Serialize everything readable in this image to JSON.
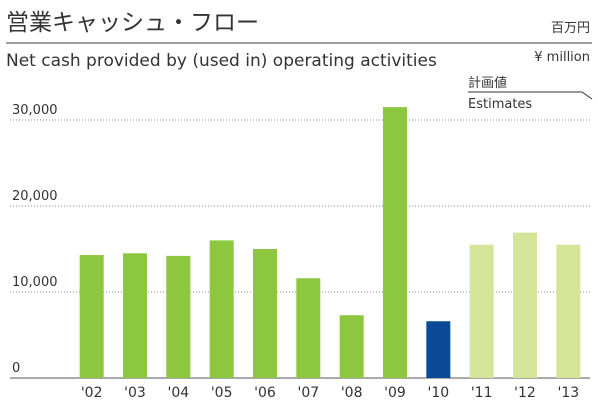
{
  "chart_data": {
    "type": "bar",
    "title": "営業キャッシュ・フロー",
    "subtitle": "Net cash provided by (used in) operating activities",
    "unit_ja": "百万円",
    "unit_en": "¥ million",
    "annotations": [
      "計画値",
      "Estimates"
    ],
    "categories": [
      "'02",
      "'03",
      "'04",
      "'05",
      "'06",
      "'07",
      "'08",
      "'09",
      "'10",
      "'11",
      "'12",
      "'13"
    ],
    "values": [
      14300,
      14500,
      14200,
      16000,
      15000,
      11600,
      7300,
      31500,
      6600,
      15500,
      16900,
      15500
    ],
    "colors": [
      "#8dc63f",
      "#8dc63f",
      "#8dc63f",
      "#8dc63f",
      "#8dc63f",
      "#8dc63f",
      "#8dc63f",
      "#8dc63f",
      "#0a4a97",
      "#d4e59a",
      "#d4e59a",
      "#d4e59a"
    ],
    "ylim": [
      0,
      32000
    ],
    "yticks": [
      0,
      {
        "value": 10000,
        "label": "10,000"
      },
      {
        "value": 20000,
        "label": "20,000"
      },
      {
        "value": 30000,
        "label": "30,000"
      }
    ],
    "grid": true
  }
}
